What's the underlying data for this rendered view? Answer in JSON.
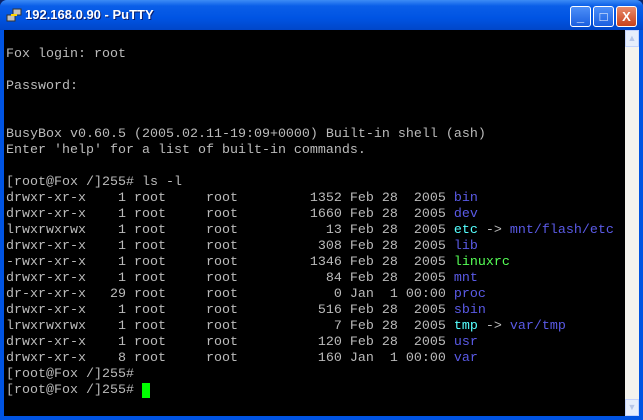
{
  "window": {
    "title": "192.168.0.90 - PuTTY",
    "icon": "putty-icon",
    "controls": {
      "minimize": "_",
      "maximize": "□",
      "close": "X"
    }
  },
  "colors": {
    "text": "#bbbbbb",
    "directory": "#5a5ae6",
    "executable": "#55ff55",
    "symlink": "#55ffff",
    "cursor": "#00ff00",
    "background": "#000000"
  },
  "terminal": {
    "lines": [
      [],
      [
        {
          "t": "Fox login: root"
        }
      ],
      [],
      [
        {
          "t": "Password:"
        }
      ],
      [],
      [],
      [
        {
          "t": "BusyBox v0.60.5 (2005.02.11-19:09+0000) Built-in shell (ash)"
        }
      ],
      [
        {
          "t": "Enter 'help' for a list of built-in commands."
        }
      ],
      [],
      [
        {
          "t": "[root@Fox /]255# ls -l"
        }
      ],
      [
        {
          "t": "drwxr-xr-x    1 root     root         1352 Feb 28  2005 "
        },
        {
          "t": "bin",
          "c": "directory"
        }
      ],
      [
        {
          "t": "drwxr-xr-x    1 root     root         1660 Feb 28  2005 "
        },
        {
          "t": "dev",
          "c": "directory"
        }
      ],
      [
        {
          "t": "lrwxrwxrwx    1 root     root           13 Feb 28  2005 "
        },
        {
          "t": "etc",
          "c": "symlink"
        },
        {
          "t": " -> "
        },
        {
          "t": "mnt/flash/etc",
          "c": "directory"
        }
      ],
      [
        {
          "t": "drwxr-xr-x    1 root     root          308 Feb 28  2005 "
        },
        {
          "t": "lib",
          "c": "directory"
        }
      ],
      [
        {
          "t": "-rwxr-xr-x    1 root     root         1346 Feb 28  2005 "
        },
        {
          "t": "linuxrc",
          "c": "executable"
        }
      ],
      [
        {
          "t": "drwxr-xr-x    1 root     root           84 Feb 28  2005 "
        },
        {
          "t": "mnt",
          "c": "directory"
        }
      ],
      [
        {
          "t": "dr-xr-xr-x   29 root     root            0 Jan  1 00:00 "
        },
        {
          "t": "proc",
          "c": "directory"
        }
      ],
      [
        {
          "t": "drwxr-xr-x    1 root     root          516 Feb 28  2005 "
        },
        {
          "t": "sbin",
          "c": "directory"
        }
      ],
      [
        {
          "t": "lrwxrwxrwx    1 root     root            7 Feb 28  2005 "
        },
        {
          "t": "tmp",
          "c": "symlink"
        },
        {
          "t": " -> "
        },
        {
          "t": "var/tmp",
          "c": "directory"
        }
      ],
      [
        {
          "t": "drwxr-xr-x    1 root     root          120 Feb 28  2005 "
        },
        {
          "t": "usr",
          "c": "directory"
        }
      ],
      [
        {
          "t": "drwxr-xr-x    8 root     root          160 Jan  1 00:00 "
        },
        {
          "t": "var",
          "c": "directory"
        }
      ],
      [
        {
          "t": "[root@Fox /]255#"
        }
      ],
      [
        {
          "t": "[root@Fox /]255# "
        },
        {
          "cursor": true
        }
      ]
    ]
  },
  "scrollbar": {
    "up_icon": "▲",
    "down_icon": "▼"
  }
}
